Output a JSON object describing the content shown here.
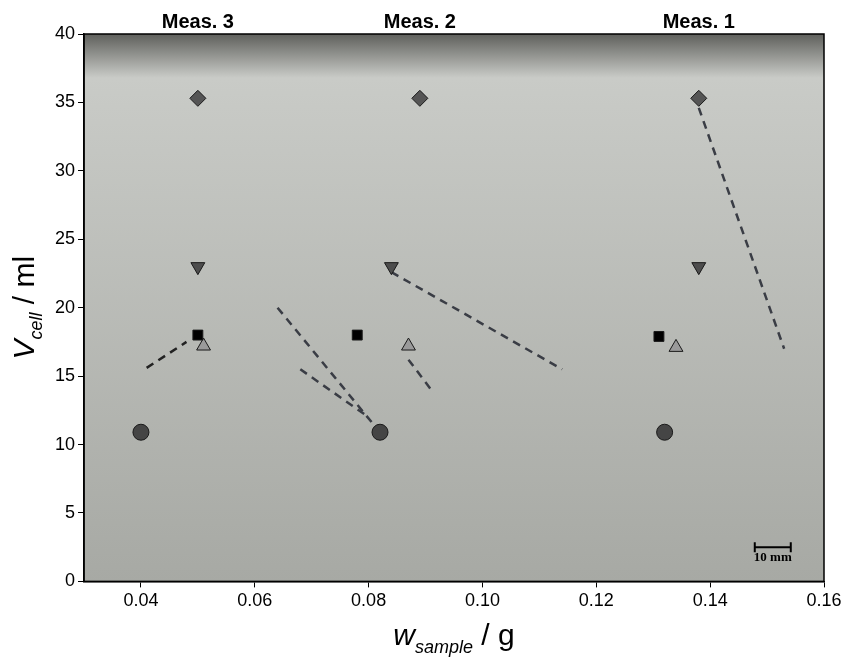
{
  "chart_data": {
    "type": "scatter",
    "x_label": {
      "main": "w",
      "sub": "sample",
      "rest": " / g"
    },
    "y_label": {
      "main": "V",
      "sub": "cell",
      "rest": " / ml"
    },
    "xlim": [
      0.03,
      0.16
    ],
    "xticks": [
      0.04,
      0.06,
      0.08,
      {
        "value": 0.1,
        "label": "0.10"
      },
      0.12,
      0.14,
      0.16
    ],
    "ylim": [
      0,
      40
    ],
    "yticks": [
      0,
      5,
      10,
      15,
      20,
      25,
      30,
      35,
      40
    ],
    "grid": false,
    "series": [
      {
        "marker": "diamond",
        "color": "#555555",
        "x": [
          0.05,
          0.089,
          0.138
        ],
        "values": [
          35.3,
          35.3,
          35.3
        ]
      },
      {
        "marker": "triangle_down",
        "color": "#4d4d4d",
        "x": [
          0.05,
          0.084,
          0.138
        ],
        "values": [
          23,
          23,
          23
        ]
      },
      {
        "marker": "square",
        "color": "#000000",
        "x": [
          0.05,
          0.078,
          0.131
        ],
        "values": [
          18,
          18,
          17.9
        ]
      },
      {
        "marker": "triangle",
        "color": "#9a9a9a",
        "x": [
          0.051,
          0.087,
          0.134
        ],
        "values": [
          17.2,
          17.2,
          17.1
        ]
      },
      {
        "marker": "circle",
        "color": "#454545",
        "x": [
          0.04,
          0.082,
          0.132
        ],
        "values": [
          10.9,
          10.9,
          10.9
        ]
      },
      {
        "type": "line",
        "line_style": "dashed",
        "color": "#222222",
        "x": [
          0.041,
          0.048
        ],
        "values": [
          15.6,
          17.5
        ]
      },
      {
        "type": "line",
        "line_style": "dashed",
        "color": "#3a3d45",
        "x": [
          0.064,
          0.081
        ],
        "values": [
          20,
          11.4
        ]
      },
      {
        "type": "line",
        "line_style": "dashed",
        "color": "#3a3d45",
        "x": [
          0.068,
          0.08
        ],
        "values": [
          15.5,
          12
        ]
      },
      {
        "type": "line",
        "line_style": "dashed",
        "color": "#3a3d45",
        "x": [
          0.087,
          0.091
        ],
        "values": [
          16.2,
          14
        ]
      },
      {
        "type": "line",
        "line_style": "dashed",
        "color": "#3a3d45",
        "x": [
          0.084,
          0.114
        ],
        "values": [
          22.6,
          15.5
        ]
      },
      {
        "type": "line",
        "line_style": "dashed",
        "color": "#3a3d45",
        "x": [
          0.138,
          0.153
        ],
        "values": [
          34.6,
          17
        ]
      }
    ],
    "annotations": [
      {
        "text": "Meas. 3",
        "x": 0.05
      },
      {
        "text": "Meas. 2",
        "x": 0.089
      },
      {
        "text": "Meas. 1",
        "x": 0.138
      },
      {
        "text": "10 mm",
        "x": 0.151,
        "y": 2.5
      }
    ]
  }
}
